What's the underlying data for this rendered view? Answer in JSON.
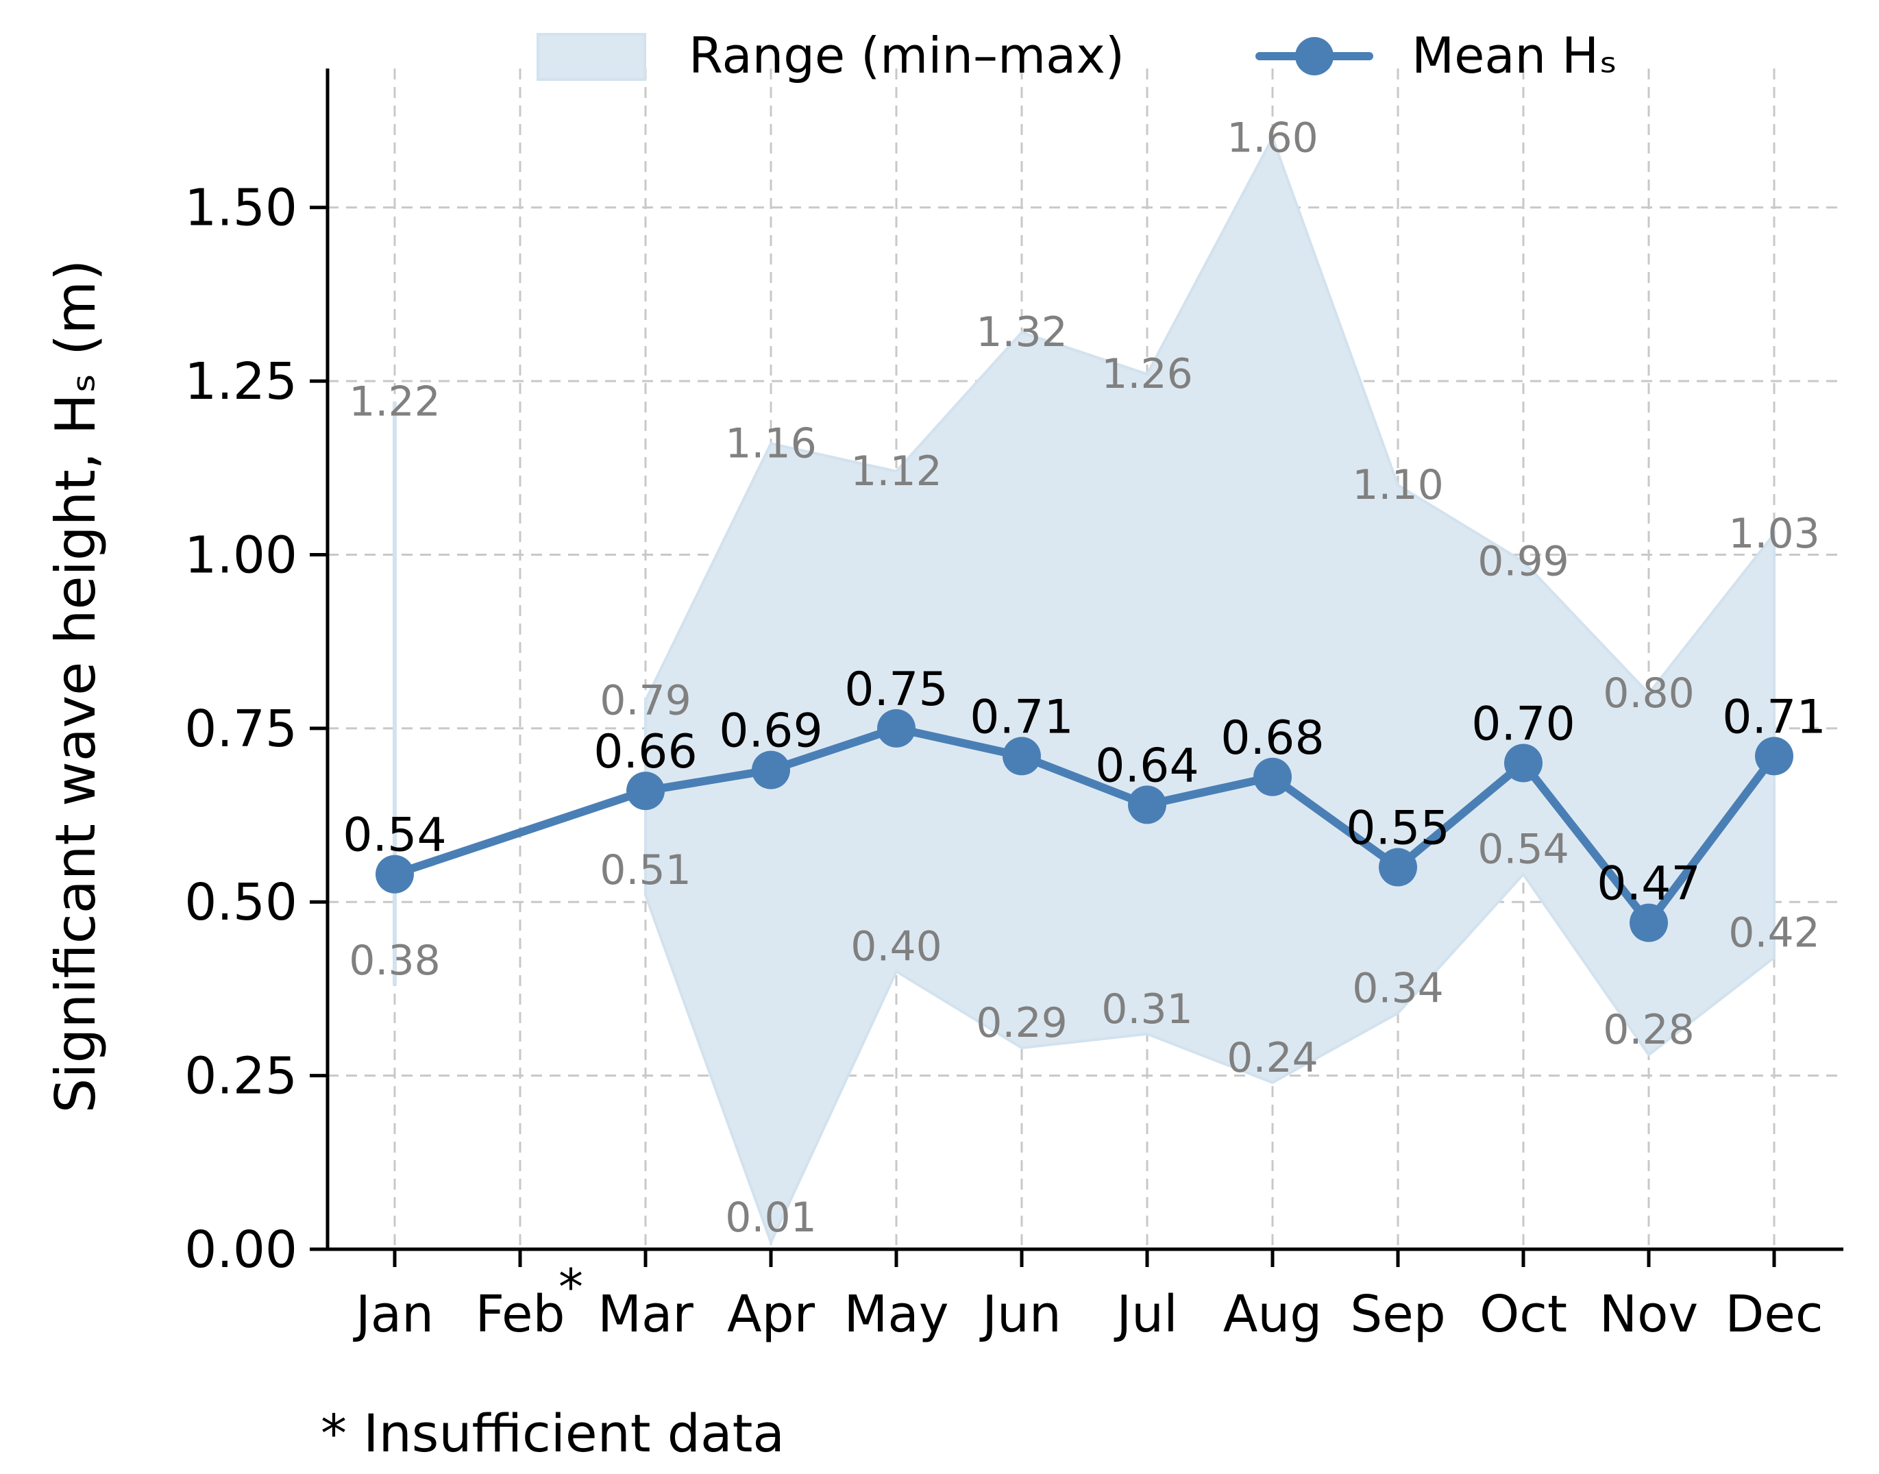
{
  "chart_data": {
    "type": "line",
    "title": "",
    "xlabel": "",
    "ylabel": "Significant wave height, Hₛ (m)",
    "ylim": [
      0,
      1.7
    ],
    "yticks": [
      "0.00",
      "0.25",
      "0.50",
      "0.75",
      "1.00",
      "1.25",
      "1.50"
    ],
    "grid": true,
    "categories": [
      "Jan",
      "Feb",
      "Mar",
      "Apr",
      "May",
      "Jun",
      "Jul",
      "Aug",
      "Sep",
      "Oct",
      "Nov",
      "Dec"
    ],
    "series": [
      {
        "name": "Mean Hₛ",
        "kind": "line-markers",
        "color": "#4a7fb6",
        "values": [
          0.54,
          null,
          0.66,
          0.69,
          0.75,
          0.71,
          0.64,
          0.68,
          0.55,
          0.7,
          0.47,
          0.71
        ],
        "labels": [
          "0.54",
          null,
          "0.66",
          "0.69",
          "0.75",
          "0.71",
          "0.64",
          "0.68",
          "0.55",
          "0.70",
          "0.47",
          "0.71"
        ]
      },
      {
        "name": "Range (min–max)",
        "kind": "band",
        "color": "#dce8f1",
        "min": [
          0.38,
          null,
          0.51,
          0.01,
          0.4,
          0.29,
          0.31,
          0.24,
          0.34,
          0.54,
          0.28,
          0.42
        ],
        "max": [
          1.22,
          null,
          0.79,
          1.16,
          1.12,
          1.32,
          1.26,
          1.6,
          1.1,
          0.99,
          0.8,
          1.03
        ],
        "min_labels": [
          "0.38",
          null,
          "0.51",
          "0.01",
          "0.40",
          "0.29",
          "0.31",
          "0.24",
          "0.34",
          "0.54",
          "0.28",
          "0.42"
        ],
        "max_labels": [
          "1.22",
          null,
          "0.79",
          "1.16",
          "1.12",
          "1.32",
          "1.26",
          "1.60",
          "1.10",
          "0.99",
          "0.80",
          "1.03"
        ]
      }
    ],
    "legend": {
      "position": "top-center",
      "entries": [
        "Range (min–max)",
        "Mean Hₛ"
      ]
    },
    "insufficient_marker": {
      "after_category": "Feb",
      "symbol": "*"
    },
    "footnote": "* Insufficient data"
  }
}
